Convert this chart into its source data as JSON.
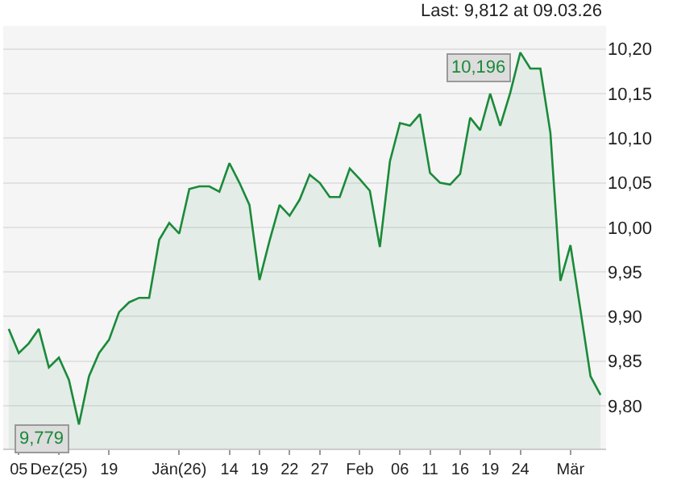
{
  "chart_data": {
    "type": "area",
    "subtitle": "Last: 9,812 at 09.03.26",
    "categories": [
      null,
      "05",
      null,
      null,
      null,
      "Dez(25)",
      null,
      null,
      null,
      null,
      "19",
      null,
      null,
      null,
      null,
      null,
      null,
      "Jän(26)",
      null,
      null,
      null,
      null,
      "14",
      null,
      null,
      "19",
      null,
      null,
      "22",
      null,
      null,
      "27",
      null,
      null,
      null,
      "Feb",
      null,
      null,
      null,
      "06",
      null,
      null,
      "11",
      null,
      null,
      "16",
      null,
      null,
      "19",
      null,
      null,
      "24",
      null,
      null,
      null,
      null,
      "Mär",
      null,
      null,
      null
    ],
    "values": [
      9.886,
      9.859,
      9.87,
      9.886,
      9.843,
      9.854,
      9.829,
      9.779,
      9.833,
      9.859,
      9.874,
      9.905,
      9.916,
      9.921,
      9.921,
      9.986,
      10.005,
      9.993,
      10.043,
      10.046,
      10.046,
      10.04,
      10.072,
      10.05,
      10.025,
      9.941,
      9.985,
      10.025,
      10.013,
      10.031,
      10.059,
      10.05,
      10.034,
      10.034,
      10.066,
      10.054,
      10.041,
      9.978,
      10.074,
      10.117,
      10.114,
      10.127,
      10.061,
      10.05,
      10.048,
      10.06,
      10.123,
      10.109,
      10.15,
      10.114,
      10.151,
      10.196,
      10.178,
      10.178,
      10.106,
      9.94,
      9.98,
      9.907,
      9.833,
      9.812
    ],
    "color": "#1a8a3a",
    "ylim": [
      9.752,
      10.226
    ],
    "yticks": [
      {
        "value": 9.8,
        "label": "9,80"
      },
      {
        "value": 9.85,
        "label": "9,85"
      },
      {
        "value": 9.9,
        "label": "9,90"
      },
      {
        "value": 9.95,
        "label": "9,95"
      },
      {
        "value": 10.0,
        "label": "10,00"
      },
      {
        "value": 10.05,
        "label": "10,05"
      },
      {
        "value": 10.1,
        "label": "10,10"
      },
      {
        "value": 10.15,
        "label": "10,15"
      },
      {
        "value": 10.2,
        "label": "10,20"
      }
    ],
    "grid": "y",
    "annotations": [
      "10,196",
      "9,779"
    ]
  }
}
